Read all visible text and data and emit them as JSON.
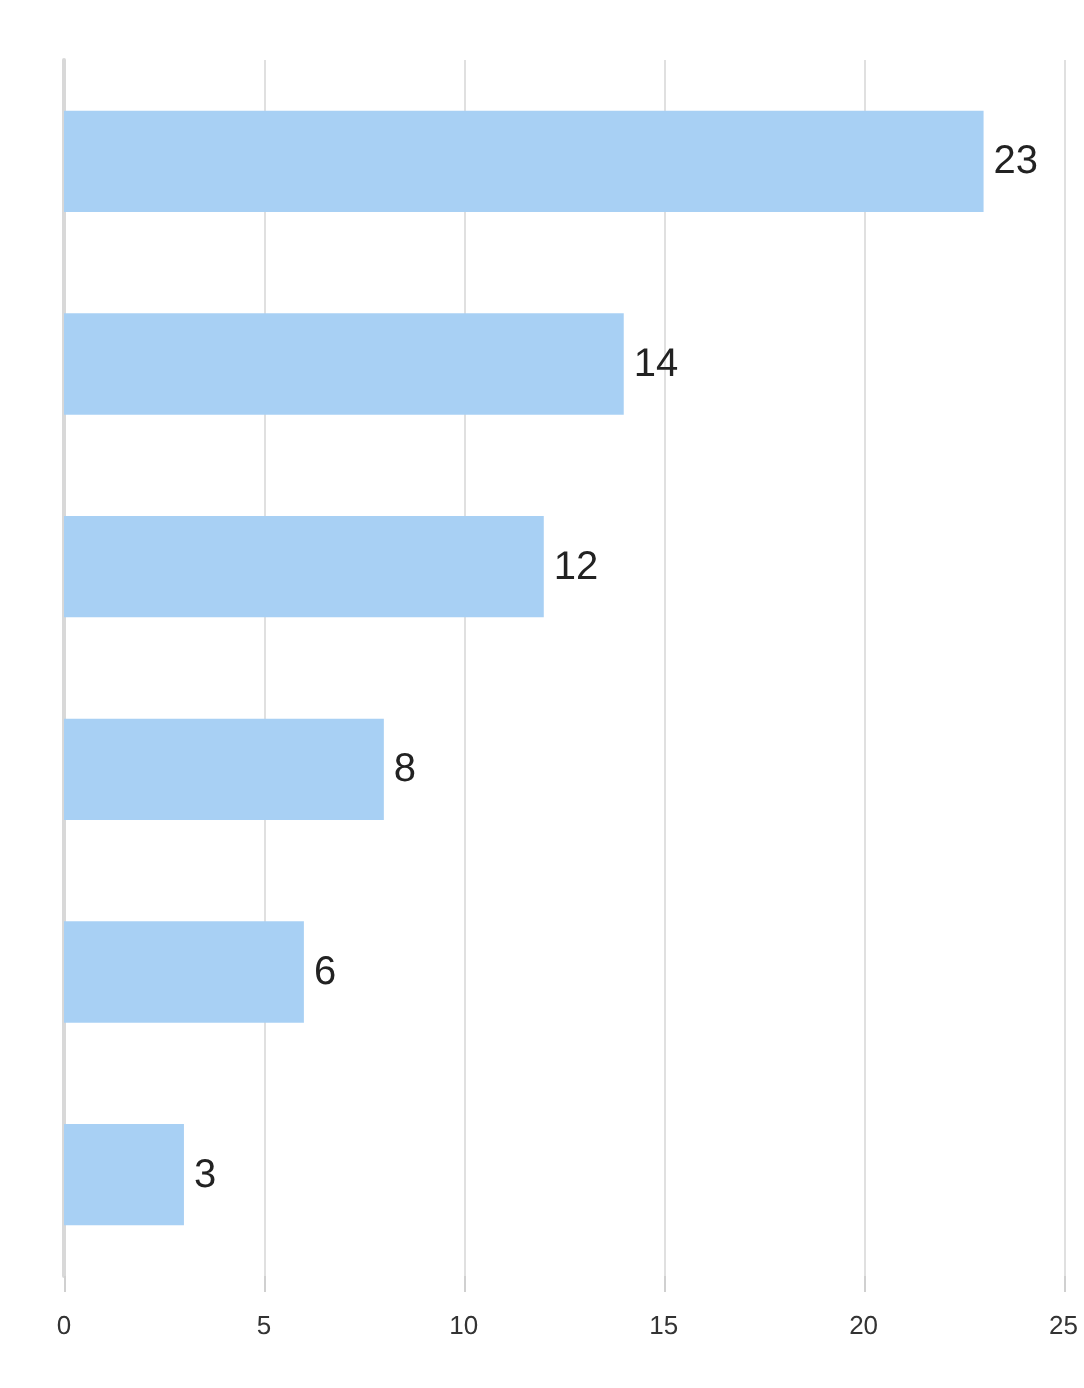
{
  "chart_data": {
    "type": "bar",
    "orientation": "horizontal",
    "categories": [
      null,
      null,
      null,
      null,
      null,
      null
    ],
    "values": [
      23,
      14,
      12,
      8,
      6,
      3
    ],
    "color": "#a8d0f4",
    "xlim": [
      0,
      25
    ],
    "xticks": [
      0,
      5,
      10,
      15,
      20,
      25
    ],
    "grid": "x",
    "data_labels": true
  }
}
